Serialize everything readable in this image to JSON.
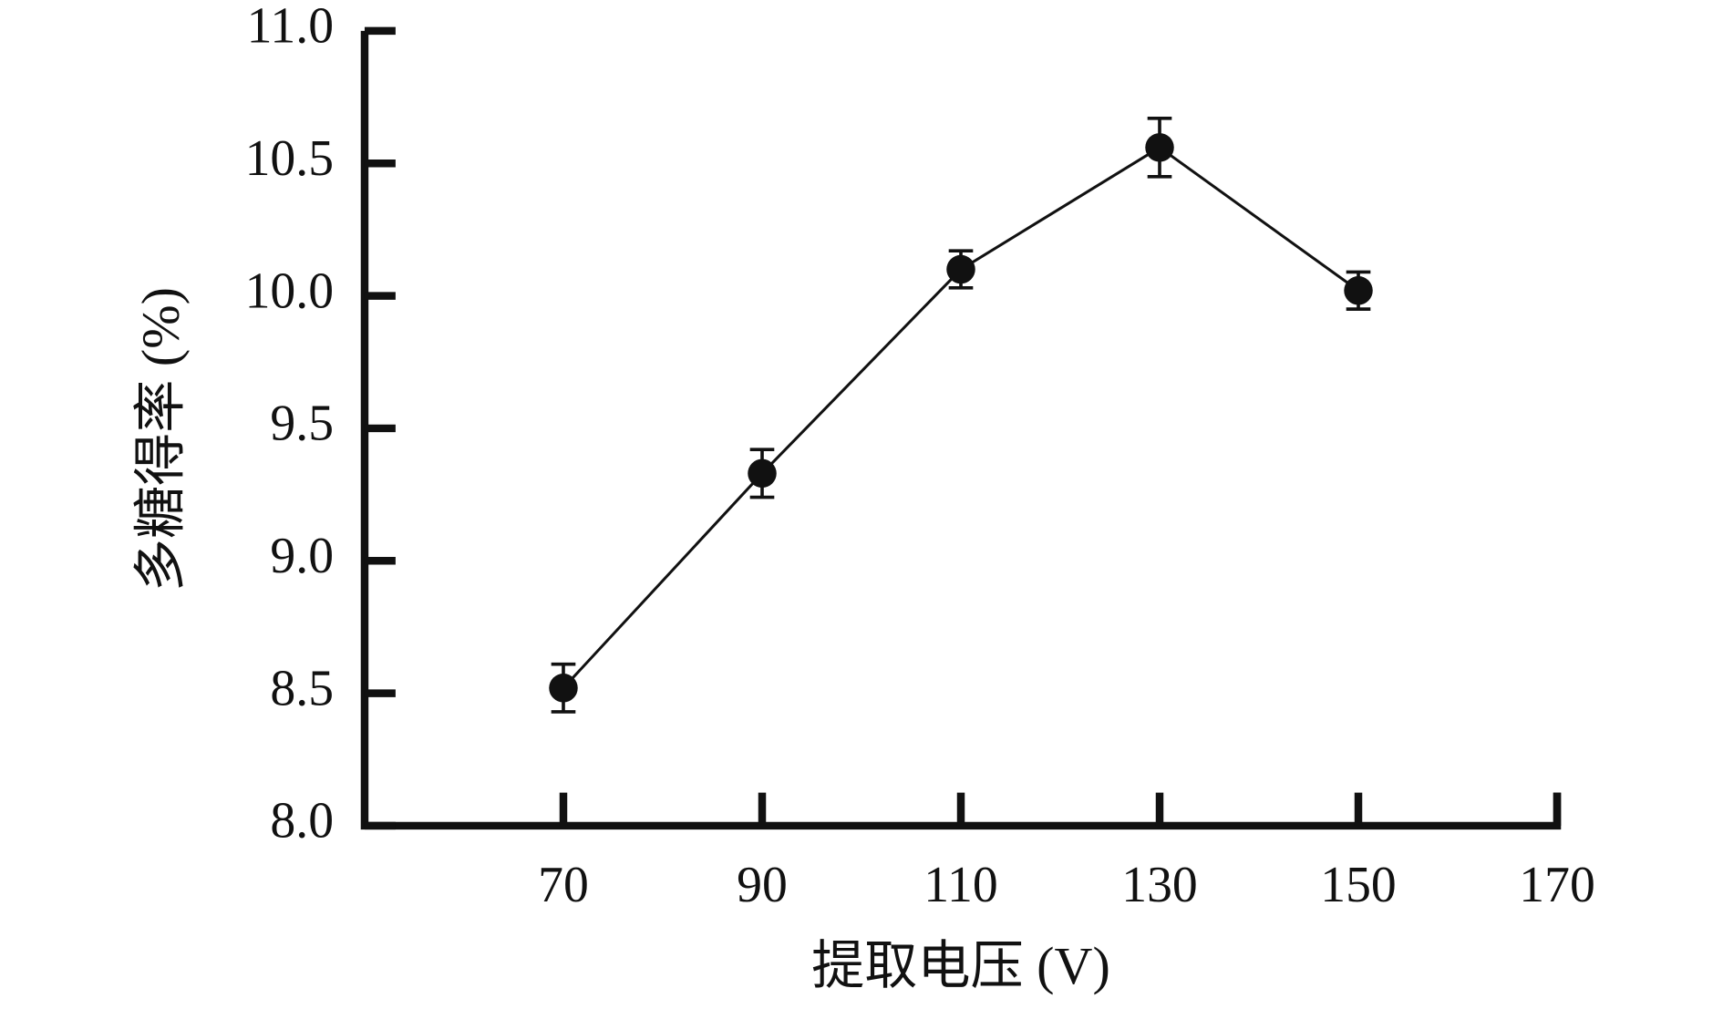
{
  "chart_data": {
    "type": "line",
    "x_label": "提取电压 (V)",
    "y_label": "多糖得率 (%)",
    "x": [
      70,
      90,
      110,
      130,
      150
    ],
    "series": [
      {
        "color": "#111111",
        "values": [
          8.52,
          9.33,
          10.1,
          10.56,
          10.02
        ],
        "errors": [
          0.09,
          0.09,
          0.07,
          0.11,
          0.07
        ]
      }
    ],
    "xlim": [
      50,
      170
    ],
    "xticks": [
      70,
      90,
      110,
      130,
      150,
      170
    ],
    "ylim": [
      8.0,
      11.0
    ],
    "yticks": [
      {
        "value": 8.0,
        "label": "8.0"
      },
      {
        "value": 8.5,
        "label": "8.5"
      },
      {
        "value": 9.0,
        "label": "9.0"
      },
      {
        "value": 9.5,
        "label": "9.5"
      },
      {
        "value": 10.0,
        "label": "10.0"
      },
      {
        "value": 10.5,
        "label": "10.5"
      },
      {
        "value": 11.0,
        "label": "11.0"
      }
    ]
  }
}
